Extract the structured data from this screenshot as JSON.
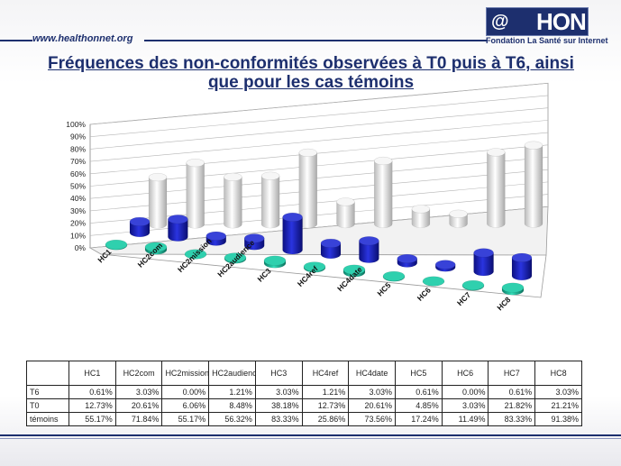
{
  "header": {
    "site": "www.healthonnet.org",
    "logo_text": "HON",
    "logo_at": "@",
    "logo_subtitle": "Fondation La Santé sur Internet"
  },
  "title": "Fréquences des non-conformités observées à T0 puis à T6, ainsi que pour les cas témoins",
  "colors": {
    "T6": "#1aa88e",
    "T0": "#1c24b4",
    "temoins": "#eeeeee",
    "brand": "#1d2f6e"
  },
  "chart_data": {
    "type": "bar",
    "title": "Fréquences des non-conformités observées à T0 puis à T6, ainsi que pour les cas témoins",
    "categories": [
      "HC1",
      "HC2com",
      "HC2mission",
      "HC2audience",
      "HC3",
      "HC4ref",
      "HC4date",
      "HC5",
      "HC6",
      "HC7",
      "HC8"
    ],
    "y_ticks": [
      "0%",
      "10%",
      "20%",
      "30%",
      "40%",
      "50%",
      "60%",
      "70%",
      "80%",
      "90%",
      "100%"
    ],
    "ylim": [
      0,
      100
    ],
    "series": [
      {
        "name": "T6",
        "values": [
          0.61,
          3.03,
          0.0,
          1.21,
          3.03,
          1.21,
          3.03,
          0.61,
          0.0,
          0.61,
          3.03
        ]
      },
      {
        "name": "T0",
        "values": [
          12.73,
          20.61,
          6.06,
          8.48,
          38.18,
          12.73,
          20.61,
          4.85,
          3.03,
          21.82,
          21.21
        ]
      },
      {
        "name": "témoins",
        "values": [
          55.17,
          71.84,
          55.17,
          56.32,
          83.33,
          25.86,
          73.56,
          17.24,
          11.49,
          83.33,
          91.38
        ]
      }
    ]
  },
  "table": {
    "headers": [
      "HC1",
      "HC2com",
      "HC2mission",
      "HC2audience",
      "HC3",
      "HC4ref",
      "HC4date",
      "HC5",
      "HC6",
      "HC7",
      "HC8"
    ],
    "rows": [
      {
        "label": "T6",
        "cells": [
          "0.61%",
          "3.03%",
          "0.00%",
          "1.21%",
          "3.03%",
          "1.21%",
          "3.03%",
          "0.61%",
          "0.00%",
          "0.61%",
          "3.03%"
        ]
      },
      {
        "label": "T0",
        "cells": [
          "12.73%",
          "20.61%",
          "6.06%",
          "8.48%",
          "38.18%",
          "12.73%",
          "20.61%",
          "4.85%",
          "3.03%",
          "21.82%",
          "21.21%"
        ]
      },
      {
        "label": "témoins",
        "cells": [
          "55.17%",
          "71.84%",
          "55.17%",
          "56.32%",
          "83.33%",
          "25.86%",
          "73.56%",
          "17.24%",
          "11.49%",
          "83.33%",
          "91.38%"
        ]
      }
    ]
  }
}
